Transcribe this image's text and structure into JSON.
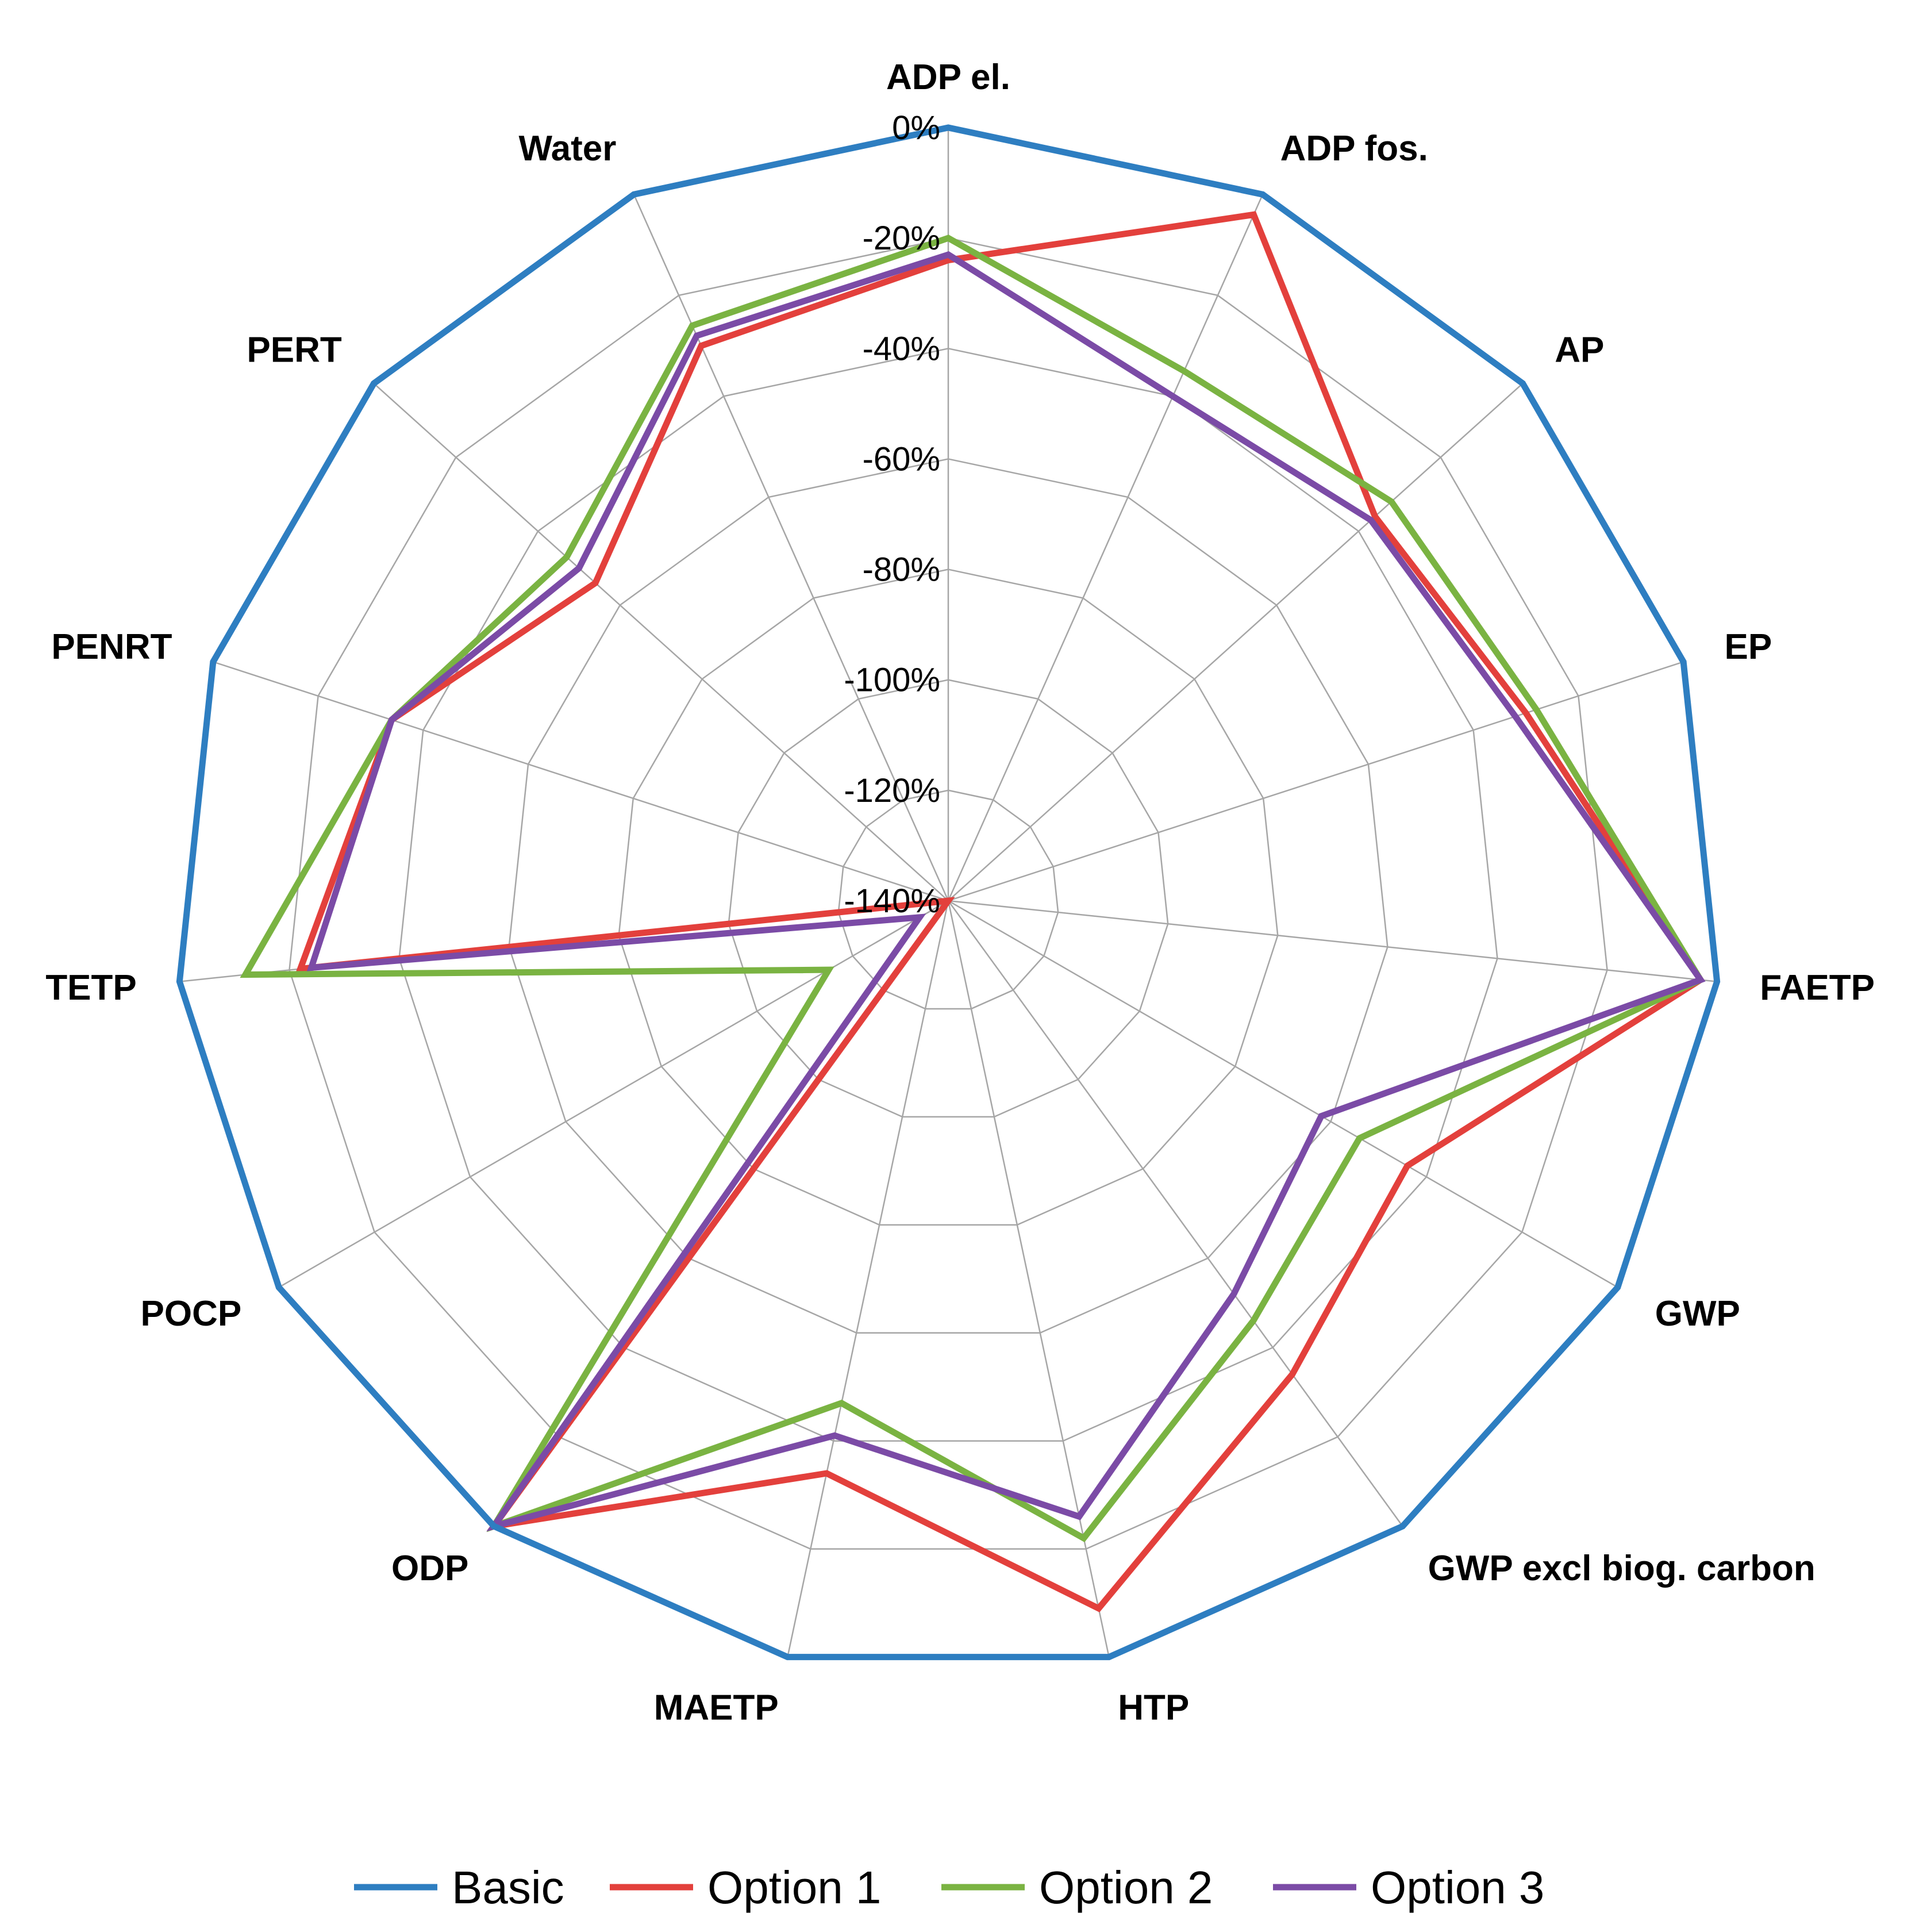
{
  "chart_data": {
    "type": "radar",
    "title": "",
    "axes": [
      "ADP el.",
      "ADP fos.",
      "AP",
      "EP",
      "FAETP",
      "GWP",
      "GWP excl biog. carbon",
      "HTP",
      "MAETP",
      "ODP",
      "POCP",
      "TETP",
      "PENRT",
      "PERT",
      "Water"
    ],
    "tick_labels": [
      "0%",
      "-20%",
      "-40%",
      "-60%",
      "-80%",
      "-100%",
      "-120%",
      "-140%"
    ],
    "tick_values": [
      0,
      -20,
      -40,
      -60,
      -80,
      -100,
      -120,
      -140
    ],
    "range": [
      -140,
      0
    ],
    "series": [
      {
        "name": "Basic",
        "color": "#2E7EC1",
        "values": [
          0,
          0,
          0,
          0,
          0,
          0,
          0,
          0,
          0,
          0,
          0,
          0,
          0,
          0,
          0
        ]
      },
      {
        "name": "Option 1",
        "color": "#E3403C",
        "values": [
          -24,
          -4,
          -36,
          -30,
          -3,
          -44,
          -34,
          -9,
          -34,
          0,
          -140,
          -22,
          -34,
          -54,
          -30
        ]
      },
      {
        "name": "Option 2",
        "color": "#7AB342",
        "values": [
          -20,
          -35,
          -32,
          -28,
          -3,
          -54,
          -46,
          -22,
          -47,
          0,
          -115,
          -12,
          -34,
          -47,
          -26
        ]
      },
      {
        "name": "Option 3",
        "color": "#7B4BA6",
        "values": [
          -23,
          -40,
          -37,
          -32,
          -3,
          -62,
          -52,
          -26,
          -41,
          0,
          -134,
          -24,
          -34,
          -50,
          -28
        ]
      }
    ]
  }
}
